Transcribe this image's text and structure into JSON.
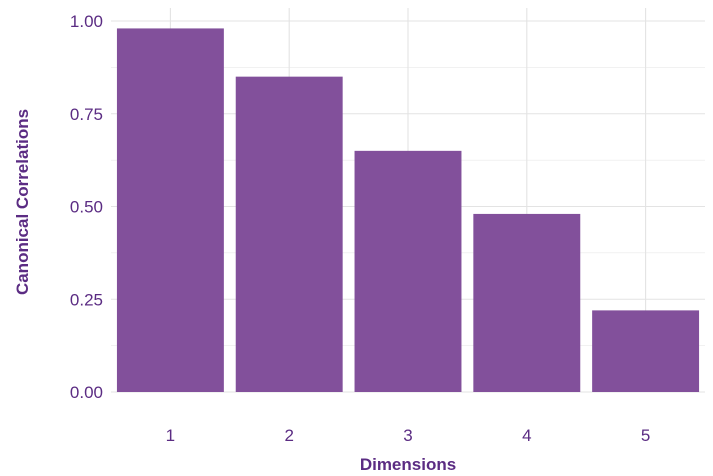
{
  "chart_data": {
    "type": "bar",
    "categories": [
      "1",
      "2",
      "3",
      "4",
      "5"
    ],
    "values": [
      0.98,
      0.85,
      0.65,
      0.48,
      0.22
    ],
    "xlabel": "Dimensions",
    "ylabel": "Canonical Correlations",
    "ylim": [
      0,
      1.0
    ],
    "yticks": [
      0.0,
      0.25,
      0.5,
      0.75,
      1.0
    ],
    "ytick_labels": [
      "0.00",
      "0.25",
      "0.50",
      "0.75",
      "1.00"
    ],
    "grid": true,
    "legend": "none"
  },
  "colors": {
    "bar": "#82509B",
    "text": "#5B2C83",
    "grid": "#E3E3E3"
  }
}
